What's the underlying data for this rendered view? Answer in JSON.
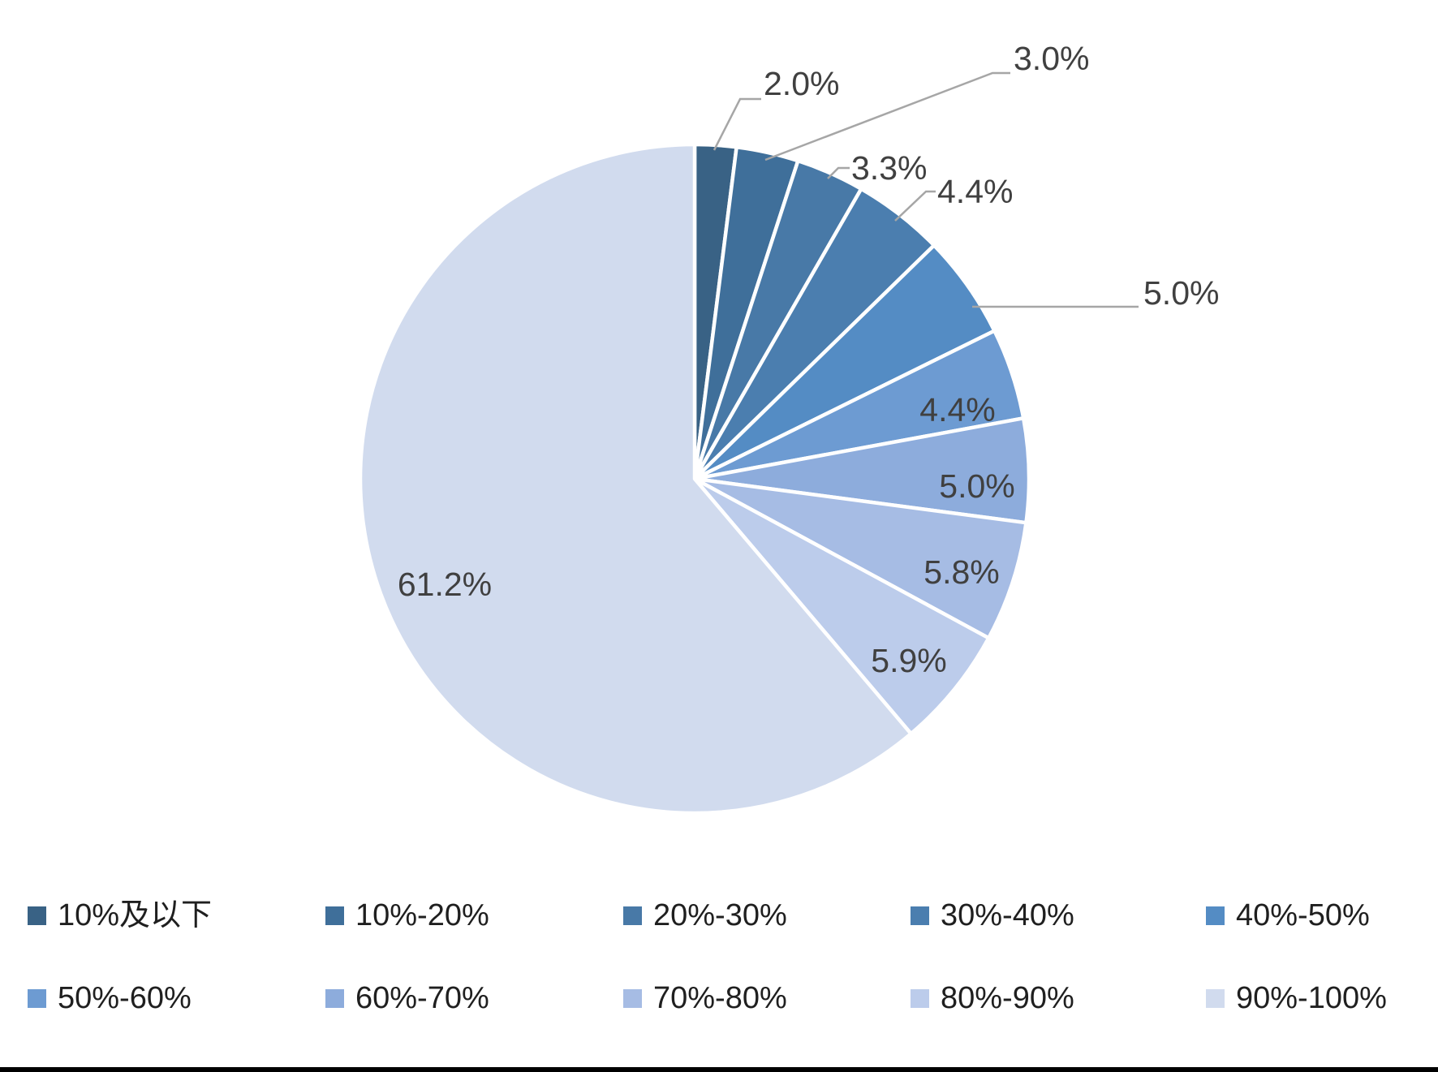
{
  "chart_data": {
    "type": "pie",
    "categories": [
      "10%及以下",
      "10%-20%",
      "20%-30%",
      "30%-40%",
      "40%-50%",
      "50%-60%",
      "60%-70%",
      "70%-80%",
      "80%-90%",
      "90%-100%"
    ],
    "values": [
      2.0,
      3.0,
      3.3,
      4.4,
      5.0,
      4.4,
      5.0,
      5.8,
      5.9,
      61.2
    ],
    "slice_labels": [
      "2.0%",
      "3.0%",
      "3.3%",
      "4.4%",
      "5.0%",
      "4.4%",
      "5.0%",
      "5.8%",
      "5.9%",
      "61.2%"
    ],
    "colors": [
      "#396285",
      "#3F6F9A",
      "#4879A7",
      "#4B7EAF",
      "#548CC4",
      "#6D9BD2",
      "#8DACDC",
      "#A6BCE4",
      "#BCCCEB",
      "#D1DBEE"
    ],
    "label_color": "#404040",
    "leader_line_color": "#A6A6A6",
    "start_angle_deg": 0,
    "direction": "clockwise",
    "legend_position": "bottom",
    "legend_rows": 2,
    "legend_text_color": "#1F1F1F"
  }
}
